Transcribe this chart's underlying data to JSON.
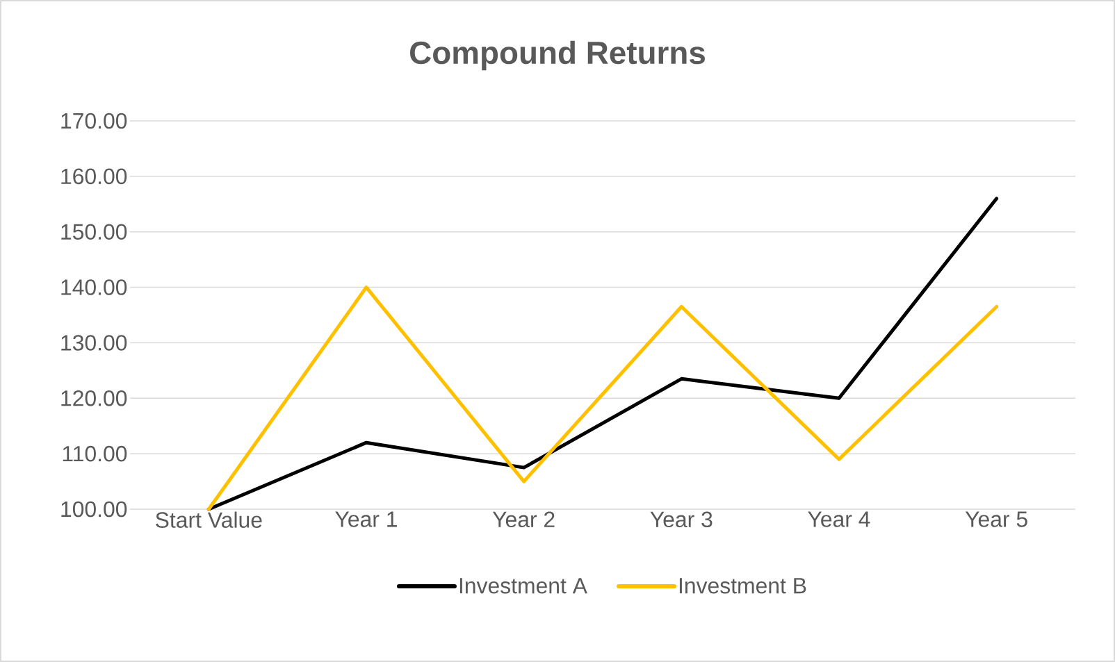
{
  "chart_data": {
    "type": "line",
    "title": "Compound Returns",
    "categories": [
      "Start Value",
      "Year 1",
      "Year 2",
      "Year 3",
      "Year 4",
      "Year 5"
    ],
    "series": [
      {
        "name": "Investment A",
        "color": "#000000",
        "values": [
          100,
          112,
          107.5,
          123.5,
          120,
          156
        ]
      },
      {
        "name": "Investment B",
        "color": "#ffc000",
        "values": [
          100,
          140,
          105,
          136.5,
          109,
          136.5
        ]
      }
    ],
    "ylim": [
      100,
      170
    ],
    "yticks": [
      {
        "value": 100,
        "label": "100.00"
      },
      {
        "value": 110,
        "label": "110.00"
      },
      {
        "value": 120,
        "label": "120.00"
      },
      {
        "value": 130,
        "label": "130.00"
      },
      {
        "value": 140,
        "label": "140.00"
      },
      {
        "value": 150,
        "label": "150.00"
      },
      {
        "value": 160,
        "label": "160.00"
      },
      {
        "value": 170,
        "label": "170.00"
      }
    ],
    "grid": "y",
    "legend": "bottom"
  }
}
